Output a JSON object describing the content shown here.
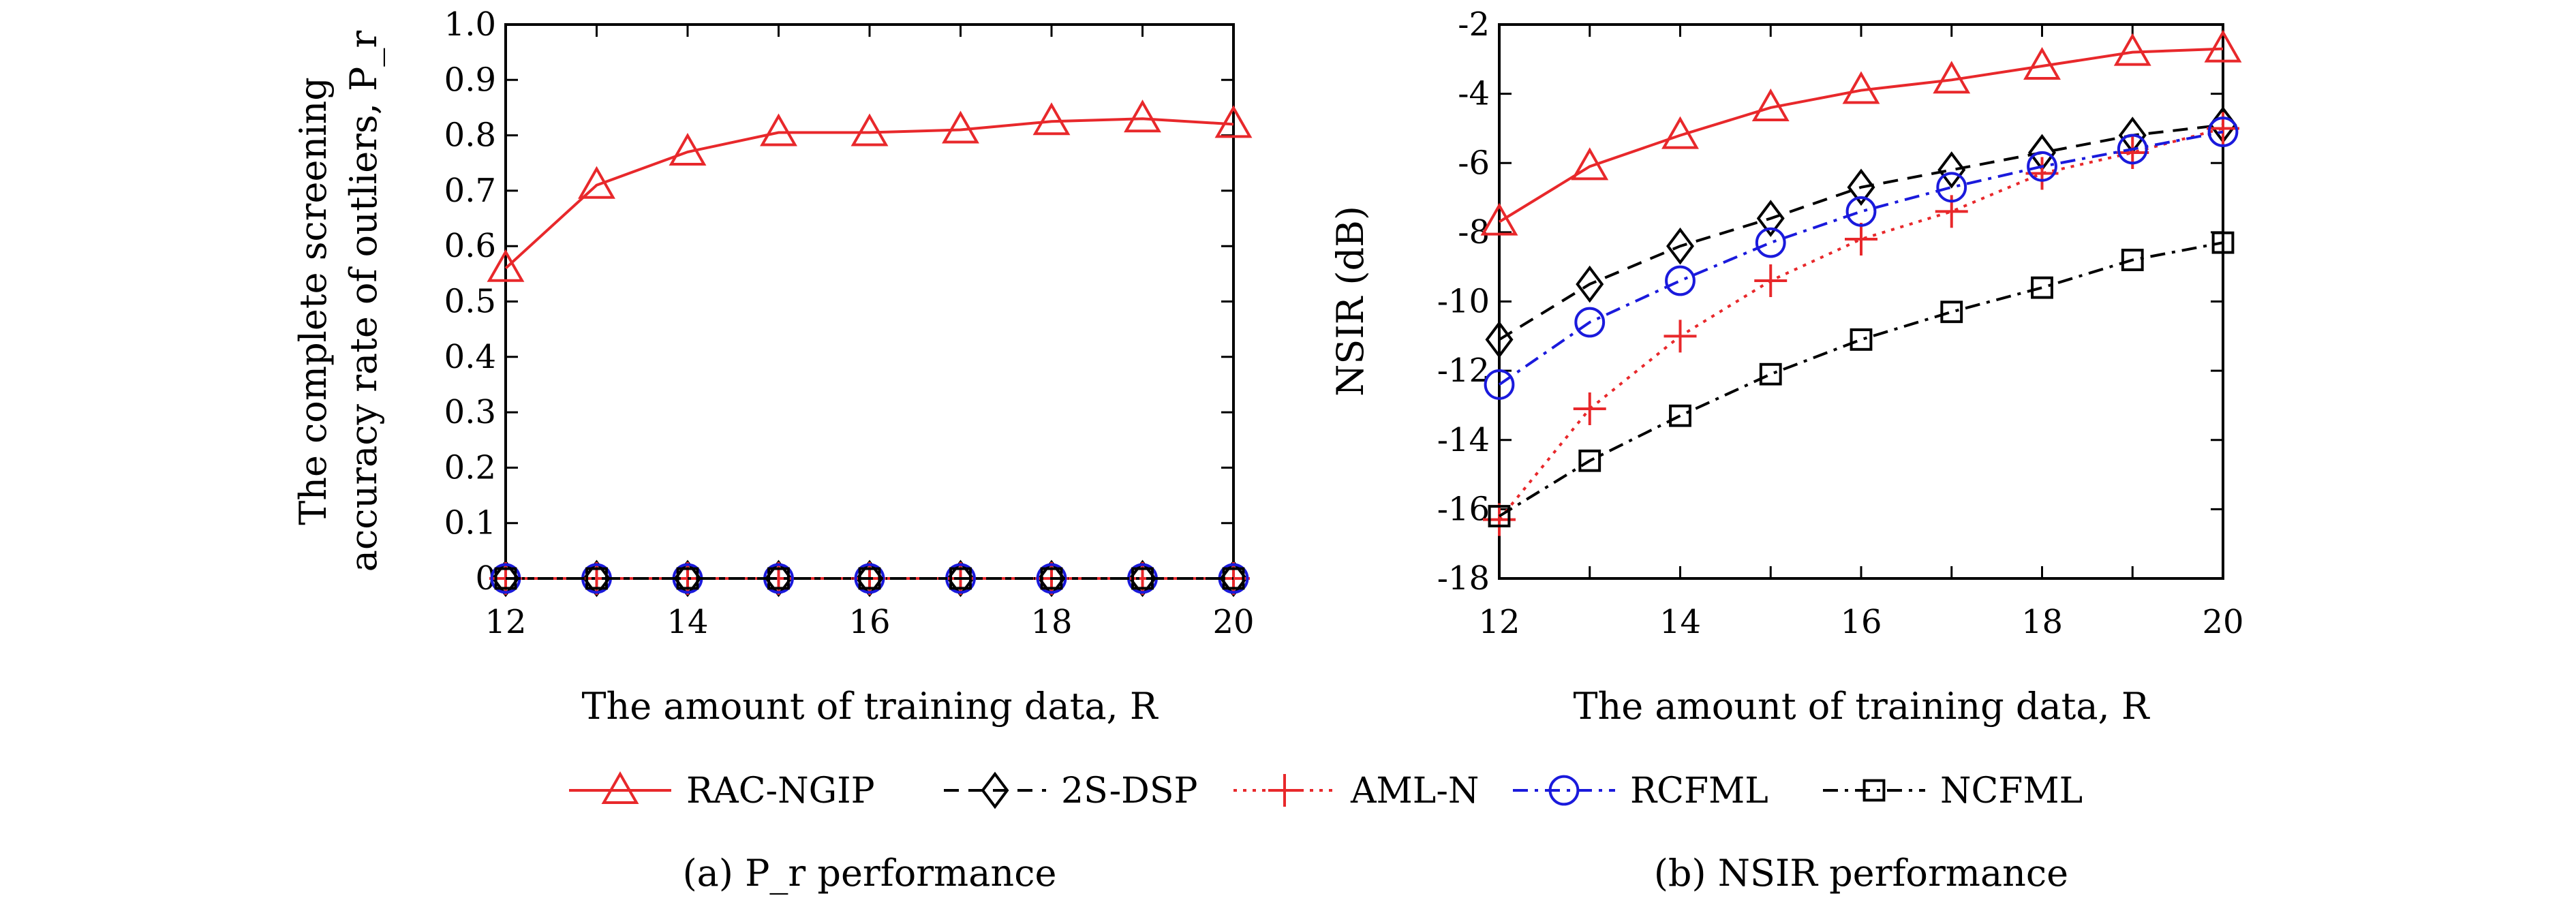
{
  "chart_data": [
    {
      "type": "line",
      "caption": "(a) P_r performance",
      "xlabel": "The amount of training data, R",
      "ylabel": [
        "The complete screening",
        "accuracy rate of outliers, P_r"
      ],
      "xlim": [
        12,
        20
      ],
      "ylim": [
        0,
        1.0
      ],
      "xticks": [
        12,
        14,
        16,
        18,
        20
      ],
      "yticks": [
        0,
        0.1,
        0.2,
        0.3,
        0.4,
        0.5,
        0.6,
        0.7,
        0.8,
        0.9,
        1.0
      ],
      "ytick_labels": [
        "0",
        "0.1",
        "0.2",
        "0.3",
        "0.4",
        "0.5",
        "0.6",
        "0.7",
        "0.8",
        "0.9",
        "1.0"
      ],
      "x": [
        12,
        13,
        14,
        15,
        16,
        17,
        18,
        19,
        20
      ],
      "grid": false,
      "series": [
        {
          "name": "RAC-NGIP",
          "values": [
            0.56,
            0.71,
            0.77,
            0.805,
            0.805,
            0.81,
            0.825,
            0.83,
            0.82
          ]
        },
        {
          "name": "2S-DSP",
          "values": [
            0,
            0,
            0,
            0,
            0,
            0,
            0,
            0,
            0
          ]
        },
        {
          "name": "AML-N",
          "values": [
            0,
            0,
            0,
            0,
            0,
            0,
            0,
            0,
            0
          ]
        },
        {
          "name": "RCFML",
          "values": [
            0,
            0,
            0,
            0,
            0,
            0,
            0,
            0,
            0
          ]
        },
        {
          "name": "NCFML",
          "values": [
            0,
            0,
            0,
            0,
            0,
            0,
            0,
            0,
            0
          ]
        }
      ]
    },
    {
      "type": "line",
      "caption": "(b) NSIR performance",
      "xlabel": "The amount of training data, R",
      "ylabel": "NSIR (dB)",
      "xlim": [
        12,
        20
      ],
      "ylim": [
        -18,
        -2
      ],
      "xticks": [
        12,
        14,
        16,
        18,
        20
      ],
      "yticks": [
        -18,
        -16,
        -14,
        -12,
        -10,
        -8,
        -6,
        -4,
        -2
      ],
      "ytick_labels": [
        "-18",
        "-16",
        "-14",
        "-12",
        "-10",
        "-8",
        "-6",
        "-4",
        "-2"
      ],
      "x": [
        12,
        13,
        14,
        15,
        16,
        17,
        18,
        19,
        20
      ],
      "grid": false,
      "series": [
        {
          "name": "RAC-NGIP",
          "values": [
            -7.7,
            -6.1,
            -5.2,
            -4.4,
            -3.9,
            -3.6,
            -3.2,
            -2.8,
            -2.7
          ]
        },
        {
          "name": "2S-DSP",
          "values": [
            -11.1,
            -9.5,
            -8.4,
            -7.6,
            -6.7,
            -6.2,
            -5.7,
            -5.2,
            -4.9
          ]
        },
        {
          "name": "AML-N",
          "values": [
            -16.3,
            -13.1,
            -11.0,
            -9.4,
            -8.2,
            -7.4,
            -6.3,
            -5.7,
            -5.0
          ]
        },
        {
          "name": "RCFML",
          "values": [
            -12.4,
            -10.6,
            -9.4,
            -8.3,
            -7.4,
            -6.7,
            -6.1,
            -5.6,
            -5.1
          ]
        },
        {
          "name": "NCFML",
          "values": [
            -16.2,
            -14.6,
            -13.3,
            -12.1,
            -11.1,
            -10.3,
            -9.6,
            -8.8,
            -8.3
          ]
        }
      ]
    }
  ],
  "legend": {
    "placement": "bottom-center",
    "entries": [
      {
        "label": "RAC-NGIP",
        "color": "#e8282b",
        "dash": "solid",
        "marker": "triangle"
      },
      {
        "label": "2S-DSP",
        "color": "#000000",
        "dash": "dashed",
        "marker": "diamond"
      },
      {
        "label": "AML-N",
        "color": "#e8282b",
        "dash": "dotted",
        "marker": "plus"
      },
      {
        "label": "RCFML",
        "color": "#1a1adc",
        "dash": "dashdot",
        "marker": "circle"
      },
      {
        "label": "NCFML",
        "color": "#000000",
        "dash": "dashdot",
        "marker": "square"
      }
    ]
  }
}
